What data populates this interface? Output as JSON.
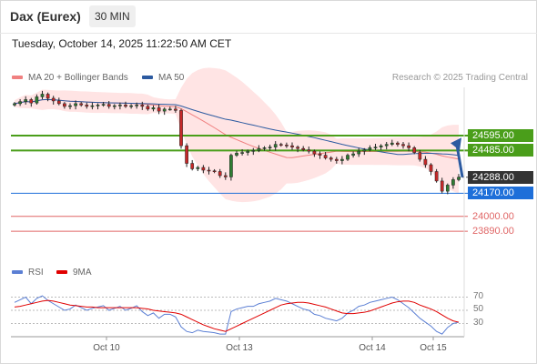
{
  "header": {
    "title": "Dax (Eurex)",
    "timeframe": "30 MIN"
  },
  "timestamp": "Tuesday, October 14, 2025 11:22:50 AM CET",
  "legend": {
    "bollinger_label": "MA 20 + Bollinger Bands",
    "ma50_label": "MA 50",
    "credit": "Research © 2025 Trading Central",
    "rsi_label": "RSI",
    "rsi_ma_label": "9MA"
  },
  "colors": {
    "up": "#2e7d32",
    "down": "#c62828",
    "bollinger": "#f08080",
    "ma50": "#2c5aa0",
    "green_level": "#4a9e1a",
    "blue_level": "#1e6fd9",
    "red_level": "#e06666",
    "rsi": "#5b7fd4",
    "rsi_ma": "#e00000"
  },
  "chart_data": {
    "type": "candlestick",
    "y_range": [
      23750,
      24950
    ],
    "x_labels": [
      "Oct 10",
      "Oct 13",
      "Oct 14",
      "Oct 15"
    ],
    "levels": [
      {
        "value": 24595.0,
        "label": "24595.00",
        "style": "resistance-green"
      },
      {
        "value": 24485.0,
        "label": "24485.00",
        "style": "resistance-green"
      },
      {
        "value": 24288.0,
        "label": "24288.00",
        "style": "last-price"
      },
      {
        "value": 24170.0,
        "label": "24170.00",
        "style": "support-blue"
      },
      {
        "value": 24000.0,
        "label": "24000.00",
        "style": "support-red"
      },
      {
        "value": 23890.0,
        "label": "23890.00",
        "style": "support-red"
      }
    ],
    "forecast_arrow": {
      "from": 24288,
      "to": 24580,
      "direction": "up"
    },
    "closes": [
      24830,
      24845,
      24860,
      24835,
      24880,
      24900,
      24870,
      24850,
      24830,
      24810,
      24815,
      24830,
      24820,
      24810,
      24815,
      24820,
      24825,
      24810,
      24815,
      24820,
      24810,
      24815,
      24820,
      24810,
      24790,
      24800,
      24775,
      24790,
      24790,
      24780,
      24520,
      24390,
      24350,
      24360,
      24340,
      24335,
      24330,
      24300,
      24290,
      24450,
      24465,
      24470,
      24480,
      24485,
      24500,
      24505,
      24510,
      24530,
      24525,
      24520,
      24510,
      24500,
      24490,
      24480,
      24460,
      24450,
      24430,
      24420,
      24410,
      24420,
      24450,
      24460,
      24480,
      24490,
      24505,
      24510,
      24520,
      24530,
      24540,
      24530,
      24520,
      24505,
      24470,
      24420,
      24380,
      24330,
      24260,
      24185,
      24230,
      24270,
      24288
    ],
    "rsi": {
      "axis_ticks": [
        70,
        50,
        30
      ],
      "y_range": [
        10,
        90
      ],
      "values": [
        62,
        66,
        70,
        60,
        68,
        72,
        65,
        60,
        55,
        50,
        52,
        58,
        54,
        50,
        53,
        55,
        57,
        50,
        53,
        56,
        50,
        53,
        57,
        48,
        42,
        46,
        38,
        44,
        44,
        40,
        25,
        18,
        16,
        20,
        18,
        17,
        16,
        14,
        14,
        48,
        52,
        54,
        56,
        56,
        60,
        62,
        64,
        68,
        66,
        64,
        60,
        56,
        52,
        50,
        44,
        42,
        38,
        36,
        34,
        38,
        46,
        50,
        56,
        58,
        62,
        64,
        66,
        68,
        70,
        66,
        60,
        54,
        46,
        38,
        32,
        26,
        18,
        14,
        24,
        30,
        32
      ],
      "ma": [
        55,
        56,
        58,
        60,
        62,
        64,
        65,
        64,
        62,
        60,
        58,
        57,
        56,
        55,
        55,
        54,
        54,
        54,
        54,
        54,
        54,
        54,
        54,
        53,
        52,
        50,
        49,
        48,
        47,
        46,
        44,
        40,
        36,
        32,
        28,
        25,
        22,
        20,
        18,
        22,
        26,
        30,
        34,
        38,
        42,
        46,
        50,
        54,
        58,
        60,
        61,
        62,
        62,
        61,
        59,
        57,
        55,
        52,
        49,
        46,
        45,
        45,
        46,
        47,
        49,
        52,
        55,
        58,
        61,
        63,
        64,
        64,
        62,
        58,
        55,
        52,
        48,
        43,
        38,
        34,
        32
      ]
    }
  }
}
